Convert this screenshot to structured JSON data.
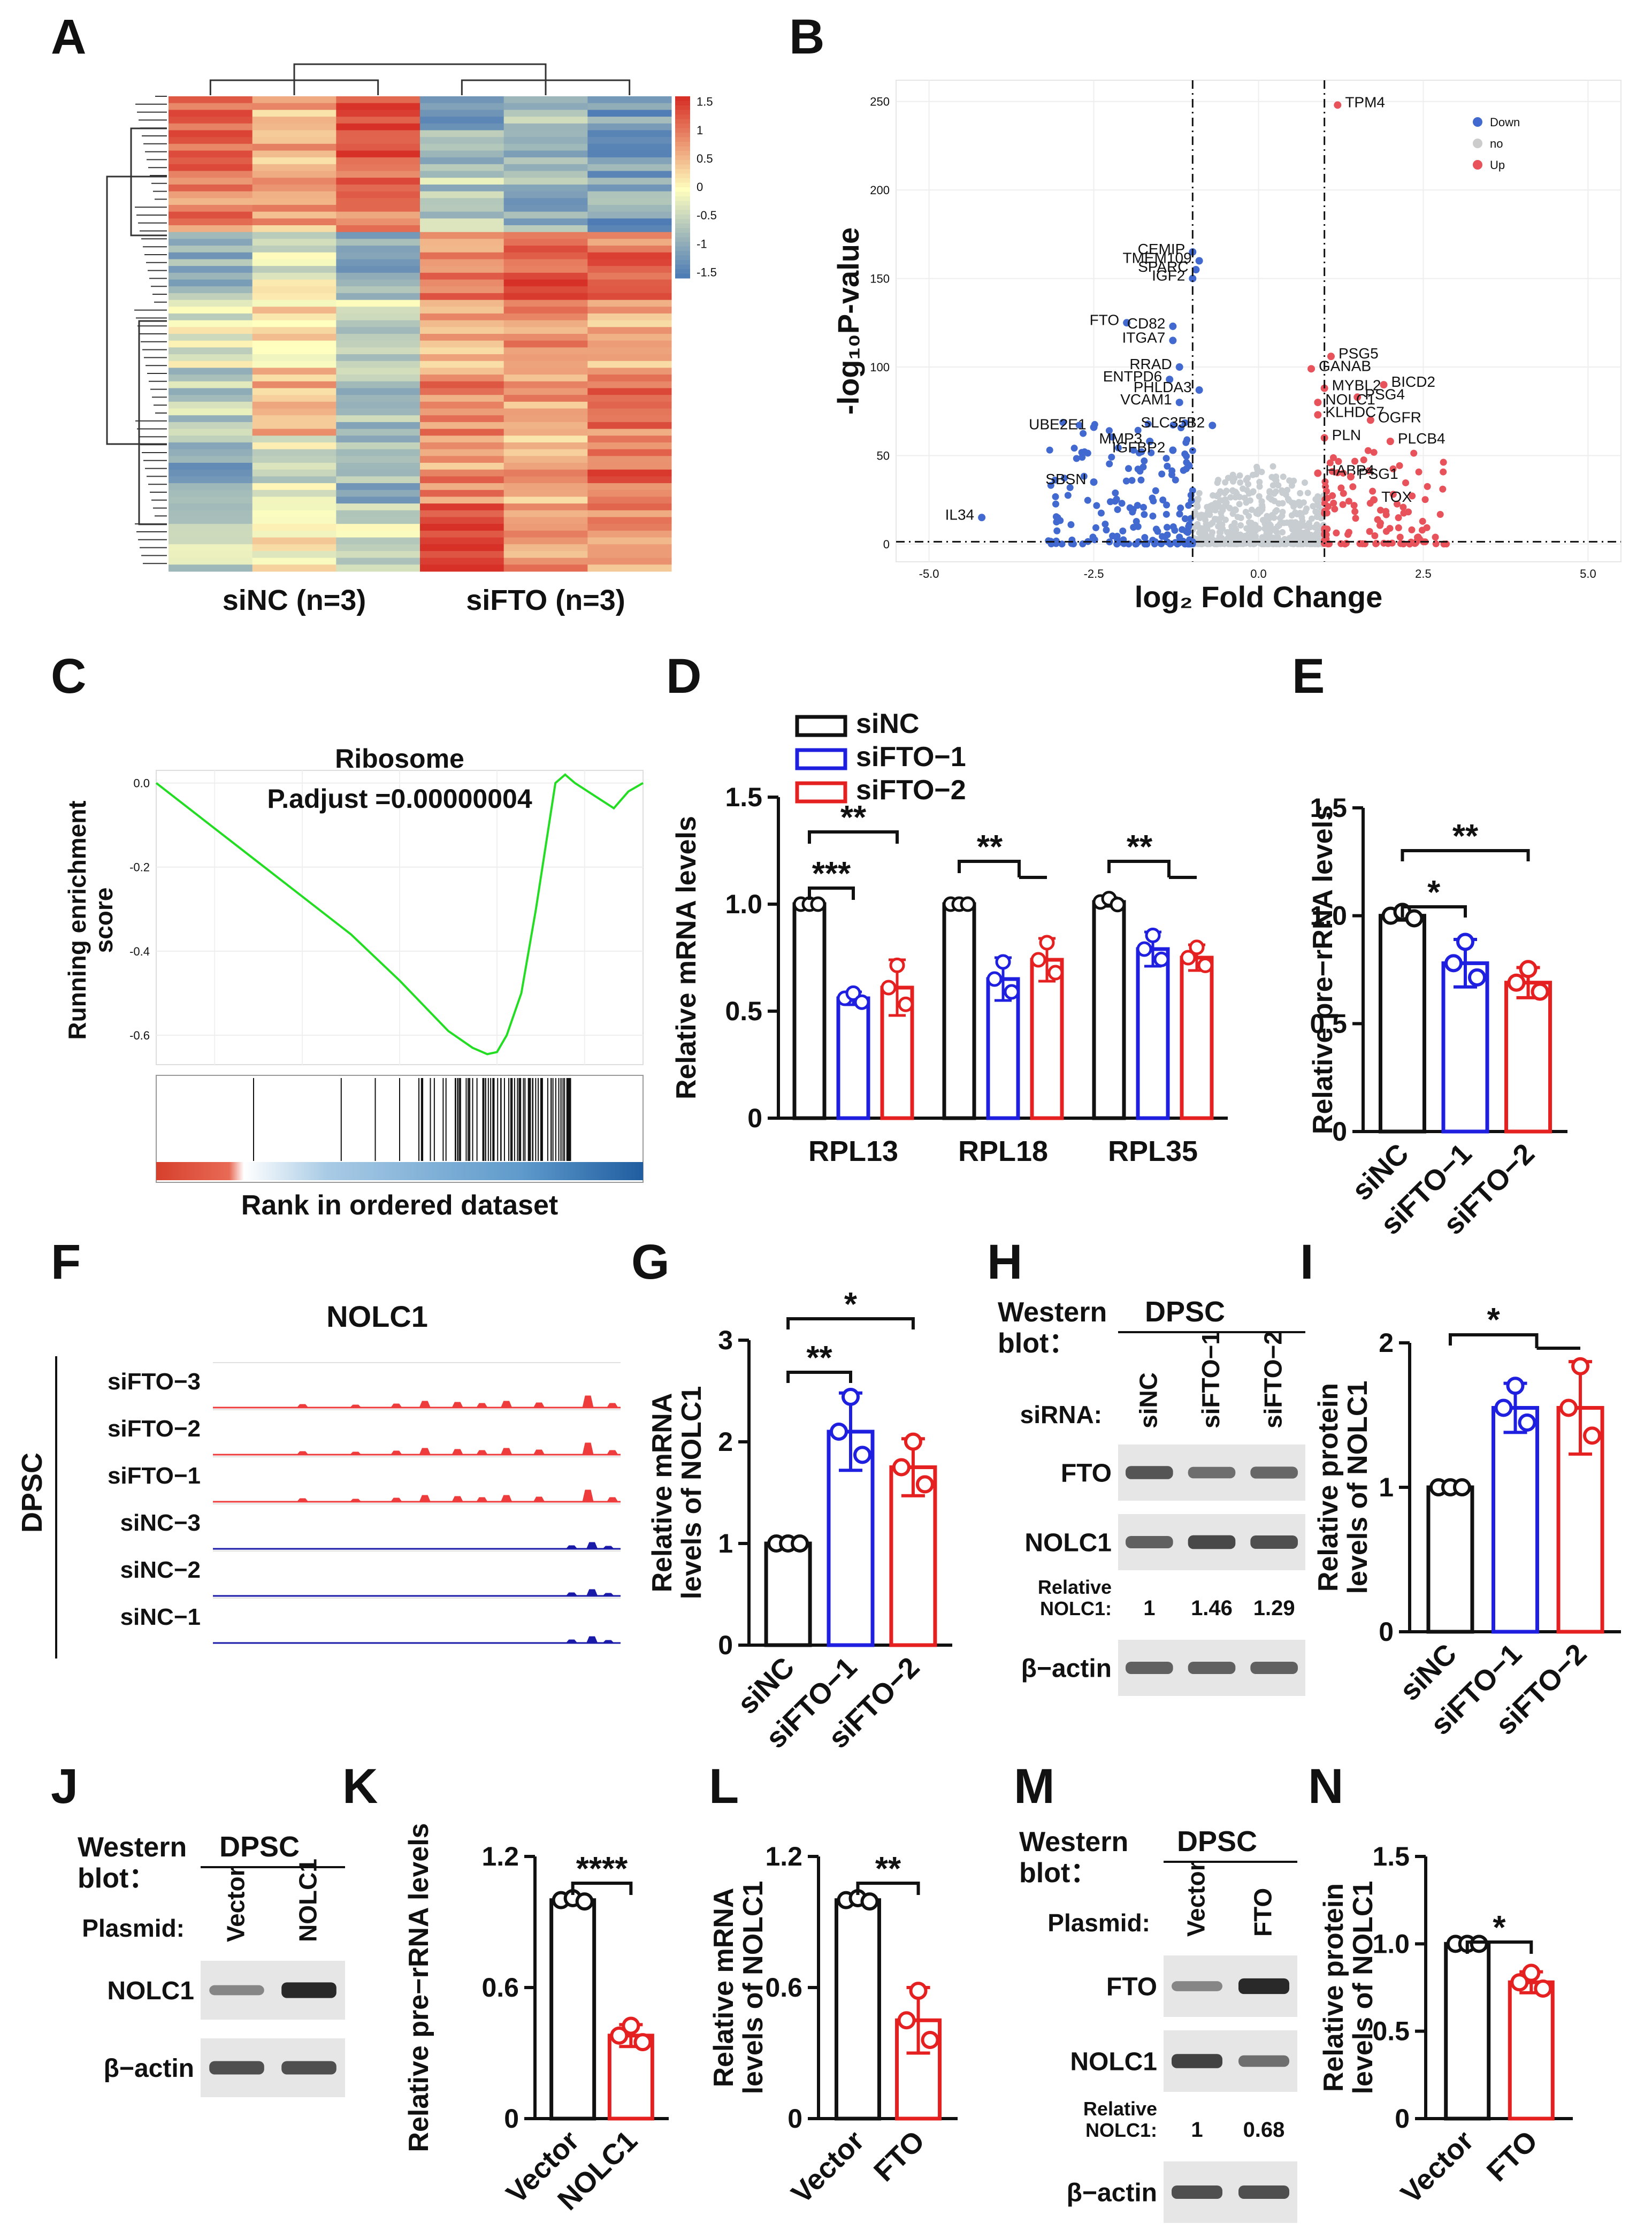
{
  "panel_labels": [
    "A",
    "B",
    "C",
    "D",
    "E",
    "F",
    "G",
    "H",
    "I",
    "J",
    "K",
    "L",
    "M",
    "N"
  ],
  "colors": {
    "black": "#111111",
    "blue": "#1f1fe0",
    "red": "#e52020",
    "heat_high": "#d73027",
    "heat_mid": "#ffffbf",
    "heat_low": "#4575b4",
    "volcano_down": "#4169cf",
    "volcano_up": "#e8525a",
    "volcano_no": "#c8cdd2",
    "gsea_line": "#22dd22",
    "padj_text": "#4472c4"
  },
  "chart_data": [
    {
      "panel": "A",
      "type": "heatmap",
      "groups": [
        "siNC (n=3)",
        "siFTO (n=3)"
      ],
      "colorbar_ticks": [
        "1.5",
        "1",
        "0.5",
        "0",
        "-0.5",
        "-1",
        "-1.5"
      ],
      "block_rows": [
        [
          1.3,
          0.6,
          1.5,
          -1.0,
          -0.8,
          -1.2
        ],
        [
          1.0,
          0.7,
          1.1,
          -0.6,
          -0.9,
          -1.1
        ],
        [
          -0.8,
          -0.2,
          -1.0,
          0.9,
          1.4,
          1.1
        ],
        [
          -0.2,
          0.3,
          -0.4,
          0.5,
          0.8,
          0.7
        ],
        [
          -0.6,
          0.5,
          -0.7,
          0.9,
          0.7,
          1.0
        ],
        [
          -0.9,
          -0.3,
          -0.8,
          0.8,
          0.6,
          1.2
        ],
        [
          -0.4,
          0.1,
          -0.3,
          1.5,
          0.9,
          0.8
        ]
      ]
    },
    {
      "panel": "B",
      "type": "scatter",
      "xlabel": "log₂ Fold Change",
      "ylabel": "-log₁₀P-value",
      "x_ticks": [
        "-5.0",
        "-2.5",
        "0.0",
        "2.5",
        "5.0"
      ],
      "y_ticks": [
        "0",
        "50",
        "100",
        "150",
        "200",
        "250"
      ],
      "xlim": [
        -5.5,
        5.5
      ],
      "ylim": [
        -10,
        262
      ],
      "thresholds": {
        "x": [
          -1,
          1
        ],
        "y": 1.3
      },
      "legend": [
        "Down",
        "no",
        "Up"
      ],
      "down_labels": [
        {
          "text": "CEMIP",
          "x": -1.0,
          "y": 165
        },
        {
          "text": "TMEM109",
          "x": -0.9,
          "y": 160
        },
        {
          "text": "IGF2",
          "x": -1.0,
          "y": 150
        },
        {
          "text": "SPARC",
          "x": -0.95,
          "y": 155
        },
        {
          "text": "FTO",
          "x": -2.0,
          "y": 125
        },
        {
          "text": "CD82",
          "x": -1.3,
          "y": 123
        },
        {
          "text": "ITGA7",
          "x": -1.3,
          "y": 115
        },
        {
          "text": "RRAD",
          "x": -1.2,
          "y": 100
        },
        {
          "text": "ENTPD6",
          "x": -1.35,
          "y": 93
        },
        {
          "text": "PHLDA3",
          "x": -0.9,
          "y": 87
        },
        {
          "text": "VCAM1",
          "x": -1.2,
          "y": 80
        },
        {
          "text": "UBE2E1",
          "x": -2.5,
          "y": 66
        },
        {
          "text": "SLC35B2",
          "x": -0.7,
          "y": 67
        },
        {
          "text": "MMP3",
          "x": -1.65,
          "y": 58
        },
        {
          "text": "IGFBP2",
          "x": -1.3,
          "y": 53
        },
        {
          "text": "SBSN",
          "x": -2.5,
          "y": 35
        },
        {
          "text": "IL34",
          "x": -4.2,
          "y": 15
        }
      ],
      "up_labels": [
        {
          "text": "TPM4",
          "x": 1.2,
          "y": 248
        },
        {
          "text": "PSG5",
          "x": 1.1,
          "y": 106
        },
        {
          "text": "GANAB",
          "x": 0.8,
          "y": 99
        },
        {
          "text": "BICD2",
          "x": 1.9,
          "y": 90
        },
        {
          "text": "MYBL2",
          "x": 1.0,
          "y": 88
        },
        {
          "text": "PSG4",
          "x": 1.5,
          "y": 83
        },
        {
          "text": "NOLC1",
          "x": 0.9,
          "y": 80
        },
        {
          "text": "OGFR",
          "x": 1.7,
          "y": 70
        },
        {
          "text": "KLHDC7",
          "x": 0.9,
          "y": 73
        },
        {
          "text": "PLN",
          "x": 1.0,
          "y": 60
        },
        {
          "text": "PLCB4",
          "x": 2.0,
          "y": 58
        },
        {
          "text": "HABP4",
          "x": 0.9,
          "y": 40
        },
        {
          "text": "PSG1",
          "x": 1.4,
          "y": 38
        },
        {
          "text": "TOX",
          "x": 1.75,
          "y": 25
        }
      ]
    },
    {
      "panel": "C",
      "type": "line",
      "title": "Ribosome",
      "annotation": "P.adjust =0.00000004",
      "ylabel": "Running enrichment score",
      "xlabel": "Rank in ordered dataset",
      "y_ticks": [
        "0.0",
        "-0.2",
        "-0.4",
        "-0.6"
      ],
      "ylim": [
        -0.67,
        0.03
      ],
      "x": [
        0,
        0.1,
        0.2,
        0.3,
        0.4,
        0.5,
        0.55,
        0.6,
        0.65,
        0.68,
        0.7,
        0.72,
        0.75,
        0.78,
        0.8,
        0.82,
        0.84,
        0.85,
        0.86,
        0.9,
        0.94,
        0.97,
        1.0
      ],
      "y": [
        0,
        -0.09,
        -0.18,
        -0.27,
        -0.36,
        -0.47,
        -0.53,
        -0.59,
        -0.63,
        -0.645,
        -0.64,
        -0.6,
        -0.5,
        -0.3,
        -0.15,
        0.0,
        0.02,
        0.01,
        0.0,
        -0.03,
        -0.06,
        -0.02,
        0.0
      ]
    },
    {
      "panel": "D",
      "type": "bar",
      "ylabel": "Relative mRNA levels",
      "categories": [
        "RPL13",
        "RPL18",
        "RPL35"
      ],
      "series": [
        {
          "name": "siNC",
          "values": [
            1.0,
            1.0,
            1.01
          ],
          "errors": [
            0.0,
            0.0,
            0.02
          ]
        },
        {
          "name": "siFTO−1",
          "values": [
            0.56,
            0.65,
            0.79
          ],
          "errors": [
            0.03,
            0.1,
            0.08
          ]
        },
        {
          "name": "siFTO−2",
          "values": [
            0.61,
            0.74,
            0.75
          ],
          "errors": [
            0.13,
            0.1,
            0.06
          ]
        }
      ],
      "y_ticks": [
        "0",
        "0.5",
        "1.0",
        "1.5"
      ],
      "ylim": [
        0,
        1.5
      ],
      "significance": [
        "***",
        "**",
        "**",
        "**"
      ]
    },
    {
      "panel": "E",
      "type": "bar",
      "ylabel": "Relative pre−rRNA levels",
      "categories": [
        "siNC",
        "siFTO−1",
        "siFTO−2"
      ],
      "values": [
        1.0,
        0.78,
        0.69
      ],
      "errors": [
        0.02,
        0.11,
        0.07
      ],
      "y_ticks": [
        "0",
        "0.5",
        "1.0",
        "1.5"
      ],
      "ylim": [
        0,
        1.5
      ],
      "significance": [
        "*",
        "**"
      ]
    },
    {
      "panel": "F",
      "type": "area",
      "title": "NOLC1",
      "side_label": "DPSC",
      "tracks": [
        "siFTO−3",
        "siFTO−2",
        "siFTO−1",
        "siNC−3",
        "siNC−2",
        "siNC−1"
      ]
    },
    {
      "panel": "G",
      "type": "bar",
      "ylabel": "Relative mRNA levels of NOLC1",
      "categories": [
        "siNC",
        "siFTO−1",
        "siFTO−2"
      ],
      "values": [
        1.0,
        2.1,
        1.75
      ],
      "errors": [
        0.0,
        0.38,
        0.28
      ],
      "y_ticks": [
        "0",
        "1",
        "2",
        "3"
      ],
      "ylim": [
        0,
        3
      ],
      "significance": [
        "**",
        "*"
      ]
    },
    {
      "panel": "I",
      "type": "bar",
      "ylabel": "Relative protein levels of NOLC1",
      "categories": [
        "siNC",
        "siFTO−1",
        "siFTO−2"
      ],
      "values": [
        1.0,
        1.55,
        1.55
      ],
      "errors": [
        0.0,
        0.17,
        0.32
      ],
      "y_ticks": [
        "0",
        "1",
        "2"
      ],
      "ylim": [
        0,
        2
      ],
      "significance": [
        "*"
      ]
    },
    {
      "panel": "K",
      "type": "bar",
      "ylabel": "Relative pre−rRNA levels",
      "categories": [
        "Vector",
        "NOLC1"
      ],
      "values": [
        1.0,
        0.38
      ],
      "errors": [
        0.01,
        0.05
      ],
      "y_ticks": [
        "0",
        "0.6",
        "1.2"
      ],
      "ylim": [
        0,
        1.2
      ],
      "significance": [
        "****"
      ]
    },
    {
      "panel": "L",
      "type": "bar",
      "ylabel": "Relative mRNA levels of NOLC1",
      "categories": [
        "Vector",
        "FTO"
      ],
      "values": [
        1.0,
        0.45
      ],
      "errors": [
        0.01,
        0.15
      ],
      "y_ticks": [
        "0",
        "0.6",
        "1.2"
      ],
      "ylim": [
        0,
        1.2
      ],
      "significance": [
        "**"
      ]
    },
    {
      "panel": "N",
      "type": "bar",
      "ylabel": "Relative protein levels of NOLC1",
      "categories": [
        "Vector",
        "FTO"
      ],
      "values": [
        1.0,
        0.78
      ],
      "errors": [
        0.0,
        0.06
      ],
      "y_ticks": [
        "0",
        "0.5",
        "1.0",
        "1.5"
      ],
      "ylim": [
        0,
        1.5
      ],
      "significance": [
        "*"
      ]
    }
  ],
  "blots": {
    "H": {
      "header": "Western blot：",
      "cell": "DPSC",
      "lane_label": "siRNA:",
      "lanes": [
        "siNC",
        "siFTO−1",
        "siFTO−2"
      ],
      "rows": [
        "FTO",
        "NOLC1",
        "β−actin"
      ],
      "quant_label": "Relative NOLC1:",
      "quant": [
        "1",
        "1.46",
        "1.29"
      ]
    },
    "J": {
      "header": "Western blot：",
      "cell": "DPSC",
      "lane_label": "Plasmid:",
      "lanes": [
        "Vector",
        "NOLC1"
      ],
      "rows": [
        "NOLC1",
        "β−actin"
      ]
    },
    "M": {
      "header": "Western blot：",
      "cell": "DPSC",
      "lane_label": "Plasmid:",
      "lanes": [
        "Vector",
        "FTO"
      ],
      "rows": [
        "FTO",
        "NOLC1",
        "β−actin"
      ],
      "quant_label": "Relative NOLC1:",
      "quant": [
        "1",
        "0.68"
      ]
    }
  }
}
